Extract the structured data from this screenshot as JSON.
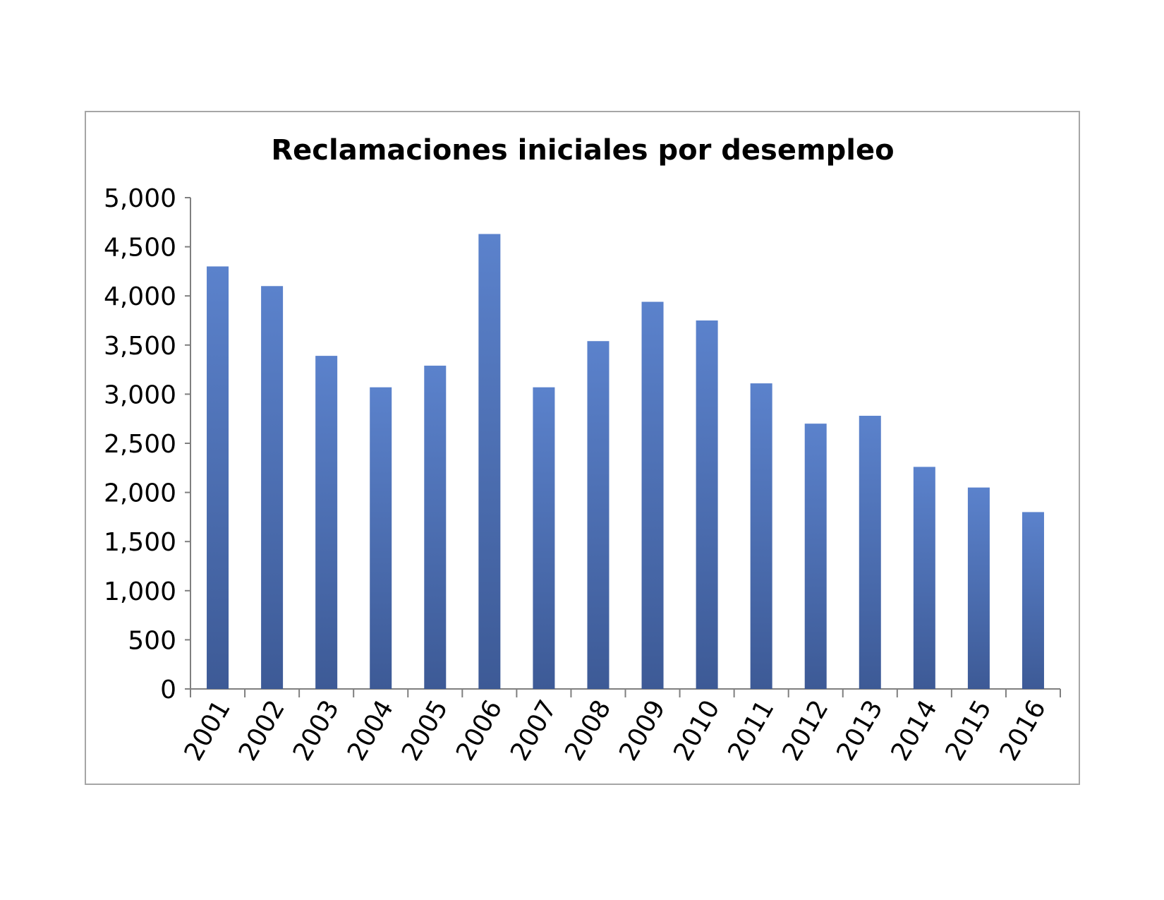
{
  "chart_data": {
    "type": "bar",
    "title": "Reclamaciones iniciales por desempleo",
    "xlabel": "",
    "ylabel": "",
    "categories": [
      "2001",
      "2002",
      "2003",
      "2004",
      "2005",
      "2006",
      "2007",
      "2008",
      "2009",
      "2010",
      "2011",
      "2012",
      "2013",
      "2014",
      "2015",
      "2016"
    ],
    "values": [
      4300,
      4100,
      3390,
      3070,
      3290,
      4630,
      3070,
      3540,
      3940,
      3750,
      3110,
      2700,
      2780,
      2260,
      2050,
      1800
    ],
    "ylim": [
      0,
      5000
    ],
    "yticks": [
      "0",
      "500",
      "1,000",
      "1,500",
      "2,000",
      "2,500",
      "3,000",
      "3,500",
      "4,000",
      "4,500",
      "5,000"
    ],
    "grid": false,
    "legend": "none",
    "colors": {
      "bar_top": "#5B82CC",
      "bar_bottom": "#3D5A96",
      "axis": "#7f7f7f",
      "frame": "#a6a6a6"
    }
  }
}
